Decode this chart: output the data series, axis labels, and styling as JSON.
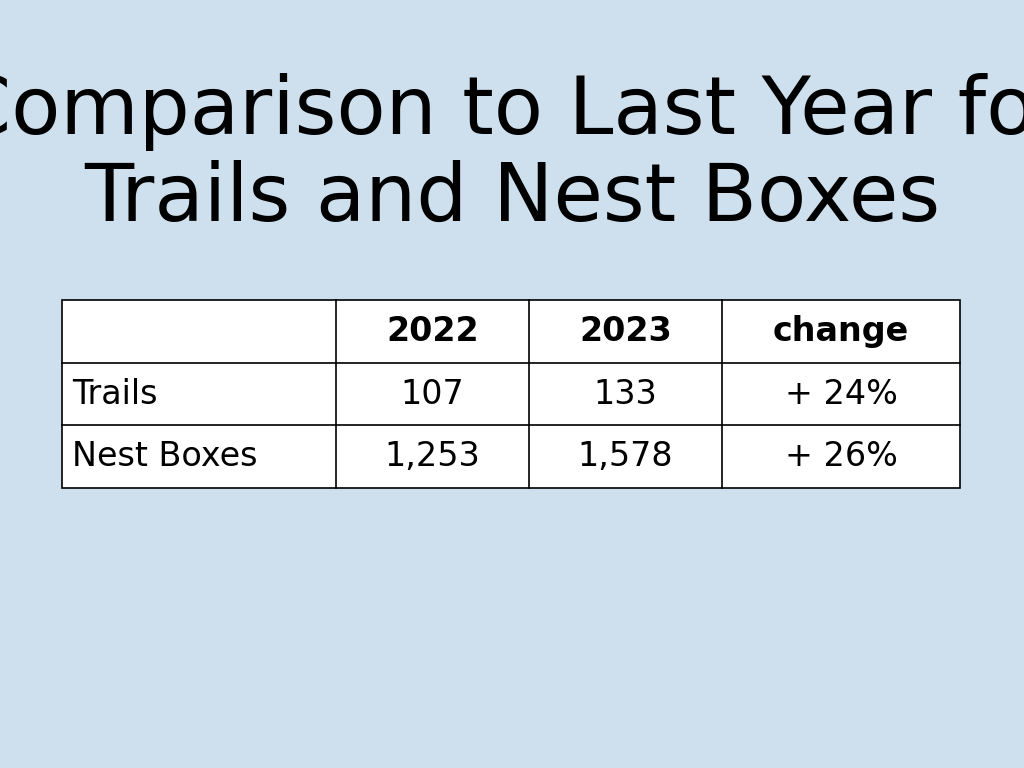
{
  "title": "Comparison to Last Year for\nTrails and Nest Boxes",
  "background_color": "#cee0ed",
  "title_fontsize": 58,
  "title_color": "#000000",
  "col_headers": [
    "",
    "2022",
    "2023",
    "change"
  ],
  "rows": [
    [
      "Trails",
      "107",
      "133",
      "+ 24%"
    ],
    [
      "Nest Boxes",
      "1,253",
      "1,578",
      "+ 26%"
    ]
  ],
  "header_fontsize": 24,
  "cell_fontsize": 24,
  "table_bg": "#ffffff",
  "border_color": "#000000",
  "border_lw": 1.2,
  "fig_width": 10.24,
  "fig_height": 7.68,
  "dpi": 100
}
